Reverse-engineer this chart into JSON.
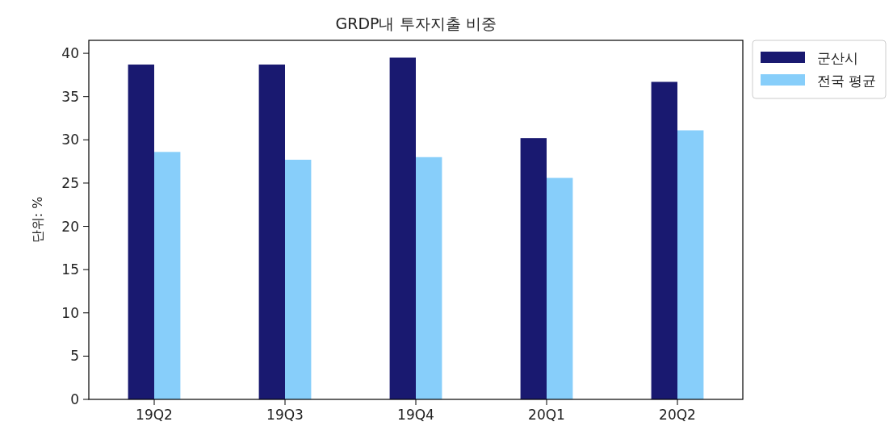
{
  "chart_data": {
    "type": "bar",
    "title": "GRDP내 투자지출 비중",
    "ylabel": "단위: %",
    "categories": [
      "19Q2",
      "19Q3",
      "19Q4",
      "20Q1",
      "20Q2"
    ],
    "series": [
      {
        "name": "군산시",
        "color": "#191970",
        "values": [
          38.7,
          38.7,
          39.5,
          30.2,
          36.7
        ]
      },
      {
        "name": "전국 평균",
        "color": "#87cefa",
        "values": [
          28.6,
          27.7,
          28.0,
          25.6,
          31.1
        ]
      }
    ],
    "ylim": [
      0,
      41.5
    ],
    "yticks": [
      0,
      5,
      10,
      15,
      20,
      25,
      30,
      35,
      40
    ],
    "legend": "top right"
  }
}
